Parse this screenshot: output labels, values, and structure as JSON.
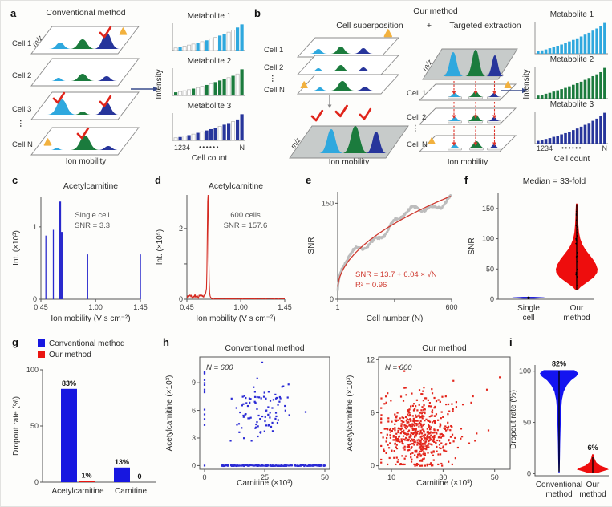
{
  "colors": {
    "light_blue": "#2FA8DE",
    "green": "#1B7B3D",
    "navy": "#27359B",
    "check_red": "#E0251B",
    "warn_yellow": "#F2B13E",
    "plane_gray": "#C7CBCA",
    "spike_blue": "#2A2ACD",
    "trace_red": "#D42A20",
    "fit_red": "#CF3A30",
    "data_gray": "#BDBDBD",
    "bar_blue": "#1717E0",
    "bar_red": "#EA1510",
    "scatter_blue": "#2B2BD5",
    "scatter_red": "#E3261C",
    "violin_blue": "#1414F0",
    "violin_red": "#EE0D0D"
  },
  "panels": {
    "a": {
      "label": "a",
      "title": "Conventional method",
      "mz": "m/z",
      "x_axis": "Ion mobility",
      "cells": [
        "Cell 1",
        "Cell 2",
        "Cell 3",
        "Cell N"
      ],
      "dots": "⋮",
      "mini": {
        "intensity": "Intensity",
        "x_left": "1234",
        "x_dots": "••••••",
        "x_right": "N",
        "x_title": "Cell count"
      }
    },
    "b": {
      "label": "b",
      "title": "Our method",
      "left_title": "Cell superposition",
      "plus": "+",
      "right_title": "Targeted extraction",
      "mz_left": "m/z",
      "mz_right": "m/z",
      "x_axis_left": "Ion mobility",
      "x_axis_right": "Ion mobility",
      "cells_left": [
        "Cell 1",
        "Cell 2",
        "Cell N"
      ],
      "cells_right": [
        "Cell 1",
        "Cell 2",
        "Cell N"
      ],
      "dots": "⋮",
      "mini": {
        "intensity": "Intensity",
        "x_left": "1234",
        "x_dots": "••••••",
        "x_right": "N",
        "x_title": "Cell count"
      }
    },
    "c": {
      "label": "c"
    },
    "d": {
      "label": "d"
    },
    "e": {
      "label": "e"
    },
    "f": {
      "label": "f"
    },
    "g": {
      "label": "g"
    },
    "h": {
      "label": "h"
    },
    "i": {
      "label": "i"
    }
  },
  "chart_data": [
    {
      "id": "a-met1",
      "type": "minibar",
      "title": "Metabolite 1",
      "color": "#2FA8DE",
      "values": [
        0.1,
        0.14,
        0.17,
        0.21,
        0.25,
        0.3,
        0.34,
        0.39,
        0.45,
        0.5,
        0.57,
        0.63,
        0.7,
        0.78,
        0.88,
        1.0
      ],
      "filled": [
        0,
        1,
        0,
        0,
        0,
        1,
        0,
        1,
        0,
        0,
        1,
        1,
        0,
        0,
        1,
        1
      ]
    },
    {
      "id": "a-met2",
      "type": "minibar",
      "title": "Metabolite 2",
      "color": "#1B7B3D",
      "values": [
        0.12,
        0.15,
        0.18,
        0.22,
        0.26,
        0.3,
        0.35,
        0.4,
        0.45,
        0.51,
        0.57,
        0.63,
        0.68,
        0.75,
        0.82,
        1.0
      ],
      "filled": [
        1,
        0,
        0,
        0,
        1,
        0,
        0,
        1,
        0,
        1,
        1,
        1,
        0,
        1,
        0,
        1
      ]
    },
    {
      "id": "a-met3",
      "type": "minibar",
      "title": "Metabolite 3",
      "color": "#27359B",
      "values": [
        0.1,
        0.13,
        0.17,
        0.2,
        0.24,
        0.29,
        0.33,
        0.38,
        0.43,
        0.48,
        0.54,
        0.6,
        0.66,
        0.72,
        0.8,
        1.0
      ],
      "filled": [
        0,
        1,
        0,
        1,
        0,
        1,
        0,
        1,
        1,
        1,
        0,
        1,
        1,
        0,
        1,
        1
      ]
    },
    {
      "id": "b-met1",
      "type": "minibar",
      "title": "Metabolite 1",
      "color": "#2FA8DE",
      "values": [
        0.08,
        0.11,
        0.14,
        0.18,
        0.22,
        0.26,
        0.3,
        0.35,
        0.4,
        0.45,
        0.5,
        0.56,
        0.62,
        0.68,
        0.75,
        0.82,
        0.9,
        1.0
      ],
      "filled": [
        1,
        1,
        1,
        1,
        1,
        1,
        1,
        1,
        1,
        1,
        1,
        1,
        1,
        1,
        1,
        1,
        1,
        1
      ]
    },
    {
      "id": "b-met2",
      "type": "minibar",
      "title": "Metabolite 2",
      "color": "#1B7B3D",
      "values": [
        0.1,
        0.13,
        0.16,
        0.19,
        0.23,
        0.27,
        0.31,
        0.35,
        0.4,
        0.45,
        0.5,
        0.55,
        0.61,
        0.67,
        0.73,
        0.79,
        0.86,
        1.0
      ],
      "filled": [
        1,
        1,
        1,
        1,
        1,
        1,
        1,
        1,
        1,
        1,
        1,
        1,
        1,
        1,
        1,
        1,
        1,
        1
      ]
    },
    {
      "id": "b-met3",
      "type": "minibar",
      "title": "Metabolite 3",
      "color": "#27359B",
      "values": [
        0.09,
        0.12,
        0.15,
        0.18,
        0.22,
        0.26,
        0.3,
        0.34,
        0.39,
        0.44,
        0.49,
        0.55,
        0.61,
        0.67,
        0.74,
        0.81,
        0.89,
        1.0
      ],
      "filled": [
        1,
        1,
        1,
        1,
        1,
        1,
        1,
        1,
        1,
        1,
        1,
        1,
        1,
        1,
        1,
        1,
        1,
        1
      ]
    },
    {
      "id": "c",
      "type": "spike",
      "title": "Acetylcarnitine",
      "annotation": [
        "Single cell",
        "SNR = 3.3"
      ],
      "xlabel": "Ion mobility (V s cm⁻²)",
      "ylabel": "Int. (×10³)",
      "xlim": [
        0.45,
        1.45
      ],
      "ylim": [
        0,
        1.42
      ],
      "xticks": [
        [
          0.45,
          "0.45"
        ],
        [
          1.0,
          "1.00"
        ],
        [
          1.45,
          "1.45"
        ]
      ],
      "yticks": [
        [
          0,
          "0"
        ],
        [
          1,
          "1"
        ]
      ],
      "spikes": [
        [
          0.5,
          0.88,
          1.3
        ],
        [
          0.575,
          0.96,
          1.3
        ],
        [
          0.643,
          1.35,
          2.4
        ],
        [
          0.656,
          0.93,
          3.2
        ],
        [
          0.92,
          0.62,
          1.3
        ],
        [
          1.45,
          0.62,
          1.5
        ]
      ],
      "color": "#2A2ACD"
    },
    {
      "id": "d",
      "type": "peakline",
      "title": "Acetylcarnitine",
      "annotation": [
        "600 cells",
        "SNR = 157.6"
      ],
      "xlabel": "Ion mobility (V s cm⁻²)",
      "ylabel": "Int. (×10⁵)",
      "xlim": [
        0.45,
        1.45
      ],
      "ylim": [
        0,
        2.95
      ],
      "xticks": [
        [
          0.45,
          "0.45"
        ],
        [
          1.0,
          "1.00"
        ],
        [
          1.45,
          "1.45"
        ]
      ],
      "yticks": [
        [
          0,
          "0"
        ],
        [
          1,
          ""
        ],
        [
          2,
          "2"
        ]
      ],
      "peak": {
        "x": 0.665,
        "h": 2.85,
        "w": 0.009
      },
      "color": "#D42A20"
    },
    {
      "id": "e",
      "type": "fit",
      "xlabel": "Cell number (N)",
      "ylabel": "SNR",
      "xlim": [
        1,
        600
      ],
      "ylim": [
        0,
        168
      ],
      "xticks": [
        [
          1,
          "1"
        ],
        [
          300,
          ""
        ],
        [
          600,
          "600"
        ]
      ],
      "yticks": [
        [
          0,
          "0"
        ],
        [
          150,
          "150"
        ]
      ],
      "fit": {
        "intercept": 13.7,
        "slope": 6.04
      },
      "annotation": [
        "SNR = 13.7 + 6.04 × √N",
        "R² = 0.96"
      ],
      "data_color": "#BDBDBD",
      "fit_color": "#CF3A30"
    },
    {
      "id": "f",
      "type": "violin",
      "title": "Median = 33-fold",
      "ylabel": "SNR",
      "ylim": [
        0,
        175
      ],
      "yticks": [
        [
          0,
          "0"
        ],
        [
          50,
          "50"
        ],
        [
          100,
          "100"
        ],
        [
          150,
          "150"
        ]
      ],
      "categories": [
        [
          "Single",
          "cell"
        ],
        [
          "Our",
          "method"
        ]
      ],
      "violins": [
        {
          "color": "#2222DD",
          "profile": [
            [
              0.8,
              0.3
            ],
            [
              1.6,
              0.85
            ],
            [
              2.4,
              1.0
            ],
            [
              3.2,
              0.85
            ],
            [
              4.0,
              0.3
            ]
          ],
          "dot": 2.3
        },
        {
          "color": "#EE0D0D",
          "profile": [
            [
              15,
              0.05
            ],
            [
              20,
              0.18
            ],
            [
              28,
              0.5
            ],
            [
              36,
              0.82
            ],
            [
              44,
              0.98
            ],
            [
              50,
              1.0
            ],
            [
              58,
              0.92
            ],
            [
              66,
              0.78
            ],
            [
              74,
              0.6
            ],
            [
              82,
              0.42
            ],
            [
              90,
              0.28
            ],
            [
              100,
              0.17
            ],
            [
              110,
              0.11
            ],
            [
              122,
              0.08
            ],
            [
              135,
              0.06
            ],
            [
              148,
              0.05
            ],
            [
              158,
              0.035
            ]
          ],
          "stat_line": [
            16,
            157
          ],
          "stat_dots": 26
        }
      ]
    },
    {
      "id": "g",
      "type": "gbar",
      "ylabel": "Dropout rate (%)",
      "ylim": [
        0,
        100
      ],
      "yticks": [
        [
          0,
          "0"
        ],
        [
          50,
          "50"
        ],
        [
          100,
          "100"
        ]
      ],
      "categories": [
        "Acetylcarnitine",
        "Carnitine"
      ],
      "legend": [
        {
          "label": "Conventional method",
          "color": "#1717E0"
        },
        {
          "label": "Our method",
          "color": "#EA1510"
        }
      ],
      "series": [
        {
          "name": "Conventional method",
          "color": "#1717E0",
          "values": [
            83,
            13
          ],
          "labels": [
            "83%",
            "13%"
          ]
        },
        {
          "name": "Our method",
          "color": "#EA1510",
          "values": [
            1,
            0
          ],
          "labels": [
            "1%",
            "0"
          ]
        }
      ]
    },
    {
      "id": "h1",
      "type": "scatter",
      "title": "Conventional method",
      "annotation": "N = 600",
      "xlabel": "Carnitine (×10³)",
      "ylabel": "Acetylcarnitine (×10³)",
      "xlim": [
        -2,
        52
      ],
      "ylim": [
        -0.4,
        11.8
      ],
      "xticks": [
        [
          0,
          "0"
        ],
        [
          25,
          "25"
        ],
        [
          50,
          "50"
        ]
      ],
      "yticks": [
        [
          0,
          "0"
        ],
        [
          3,
          "3"
        ],
        [
          6,
          "6"
        ],
        [
          9,
          "9"
        ]
      ],
      "color": "#2B2BD5",
      "clusters": [
        {
          "kind": "gauss",
          "n": 92,
          "cx": 24,
          "cy": 5.9,
          "sx": 6.2,
          "sy": 1.55,
          "seed": 101,
          "xr": [
            8,
            42
          ],
          "yr": [
            2.7,
            11.3
          ]
        },
        {
          "kind": "gauss",
          "n": 11,
          "cx": 0,
          "cy": 6.6,
          "sx": 0.01,
          "sy": 1.8,
          "seed": 103,
          "xr": [
            0,
            0
          ],
          "yr": [
            4,
            10.2
          ]
        },
        {
          "kind": "rowx",
          "n": 160,
          "x0": 7,
          "x1": 50,
          "y": 0,
          "seed": 105
        },
        {
          "kind": "pts",
          "pts": [
            [
              0,
              0
            ],
            [
              0,
              10
            ],
            [
              24,
              11.2
            ],
            [
              45,
              0
            ],
            [
              49.5,
              0
            ],
            [
              50,
              0
            ]
          ]
        }
      ]
    },
    {
      "id": "h2",
      "type": "scatter",
      "title": "Our method",
      "annotation": "N = 600",
      "xlabel": "Carnitine (×10³)",
      "ylabel": "Acetylcarnitine (×10³)",
      "xlim": [
        5,
        56
      ],
      "ylim": [
        -0.4,
        12.3
      ],
      "xticks": [
        [
          10,
          "10"
        ],
        [
          30,
          "30"
        ],
        [
          50,
          "50"
        ]
      ],
      "yticks": [
        [
          0,
          "0"
        ],
        [
          6,
          "6"
        ],
        [
          12,
          "12"
        ]
      ],
      "color": "#E3261C",
      "clusters": [
        {
          "kind": "gauss",
          "n": 520,
          "cx": 20.5,
          "cy": 3.7,
          "sx": 6.8,
          "sy": 1.9,
          "seed": 201,
          "xr": [
            6,
            54
          ],
          "yr": [
            0.15,
            9
          ]
        },
        {
          "kind": "gauss",
          "n": 30,
          "cx": 22,
          "cy": 6.5,
          "sx": 8,
          "sy": 1.2,
          "seed": 203,
          "xr": [
            8,
            50
          ],
          "yr": [
            5,
            9.5
          ]
        },
        {
          "kind": "rowx",
          "n": 10,
          "x0": 16,
          "x1": 30,
          "y": 0,
          "seed": 205
        },
        {
          "kind": "pts",
          "pts": [
            [
              13,
              11.2
            ],
            [
              15,
              10.7
            ],
            [
              52,
              10.0
            ],
            [
              34,
              9.6
            ],
            [
              8.5,
              8.2
            ],
            [
              47,
              8.6
            ]
          ]
        }
      ]
    },
    {
      "id": "i",
      "type": "violin",
      "ylabel": "Dropout rate (%)",
      "ylim": [
        -2,
        106
      ],
      "yticks": [
        [
          0,
          "0"
        ],
        [
          50,
          "50"
        ],
        [
          100,
          "100"
        ]
      ],
      "categories": [
        [
          "Conventional",
          "method"
        ],
        [
          "Our",
          "method"
        ]
      ],
      "violins": [
        {
          "color": "#1414F0",
          "label": "82%",
          "profile": [
            [
              101,
              0.8
            ],
            [
              98,
              1.0
            ],
            [
              95,
              0.9
            ],
            [
              91,
              0.62
            ],
            [
              86,
              0.4
            ],
            [
              80,
              0.24
            ],
            [
              72,
              0.15
            ],
            [
              60,
              0.1
            ],
            [
              45,
              0.08
            ],
            [
              30,
              0.06
            ],
            [
              15,
              0.045
            ],
            [
              5,
              0.035
            ],
            [
              1,
              0.03
            ]
          ],
          "stat_line": [
            2,
            100
          ]
        },
        {
          "color": "#EE0D0D",
          "label": "6%",
          "profile": [
            [
              0.5,
              0.25
            ],
            [
              2,
              0.55
            ],
            [
              4,
              1.0
            ],
            [
              6,
              0.78
            ],
            [
              8,
              0.45
            ],
            [
              11,
              0.22
            ],
            [
              15,
              0.1
            ],
            [
              19,
              0.04
            ]
          ],
          "stat_line": [
            0.5,
            16
          ]
        }
      ]
    }
  ]
}
